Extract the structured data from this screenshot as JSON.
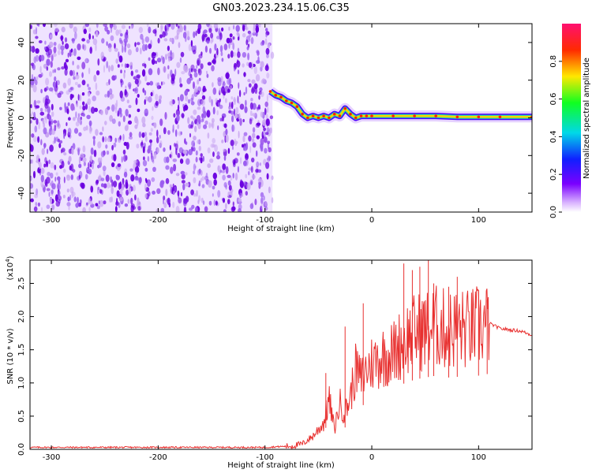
{
  "title": "GN03.2023.234.15.06.C35",
  "colors": {
    "noise_purple": "#6a00e0",
    "noise_light": "#c9a6f2",
    "snr_line": "#e8302f",
    "frame": "#000000"
  },
  "chart_data": [
    {
      "type": "heatmap",
      "xlabel": "Height of straight line (km)",
      "ylabel": "Frequency (Hz)",
      "xlim": [
        -320,
        150
      ],
      "ylim": [
        -50,
        50
      ],
      "xticks": [
        "-300",
        "-200",
        "-100",
        "0",
        "100"
      ],
      "yticks": [
        "-40",
        "-20",
        "0",
        "20",
        "40"
      ],
      "noise_region_x": [
        -320,
        -93
      ],
      "signal_track": {
        "x": [
          -95,
          -90,
          -85,
          -80,
          -75,
          -70,
          -65,
          -60,
          -55,
          -50,
          -45,
          -40,
          -35,
          -30,
          -25,
          -20,
          -15,
          -10,
          -5,
          0,
          20,
          40,
          60,
          80,
          100,
          120,
          150
        ],
        "y": [
          14,
          12,
          11,
          9,
          8,
          6,
          2,
          0,
          1,
          0,
          1,
          0,
          2,
          1,
          5,
          2,
          0,
          1,
          1,
          1,
          1,
          1,
          1,
          0.5,
          0.5,
          0.5,
          0.5
        ]
      },
      "colorbar": {
        "label": "Normalized spectral amplitude",
        "range": [
          0,
          1
        ],
        "ticks": [
          "0.0",
          "0.2",
          "0.4",
          "0.6",
          "0.8"
        ]
      }
    },
    {
      "type": "line",
      "xlabel": "Height of straight line (km)",
      "ylabel": "SNR (10 * v/v)",
      "exponent_label": "(x10",
      "exponent_power": "4",
      "exponent_close": ")",
      "xlim": [
        -320,
        150
      ],
      "ylim": [
        0,
        2.85
      ],
      "xticks": [
        "-300",
        "-200",
        "-100",
        "0",
        "100"
      ],
      "yticks": [
        "0.0",
        "0.5",
        "1.0",
        "1.5",
        "2.0",
        "2.5"
      ],
      "series": [
        {
          "x": [
            -320,
            -200,
            -100,
            -75,
            -65,
            -55,
            -45,
            -40,
            -35,
            -30,
            -25,
            -20,
            -15,
            -10,
            -5,
            0,
            10,
            20,
            30,
            40,
            50,
            60,
            70,
            80,
            90,
            100,
            110,
            120,
            130,
            140,
            150
          ],
          "y": [
            0.03,
            0.03,
            0.03,
            0.05,
            0.08,
            0.2,
            0.4,
            0.75,
            0.3,
            0.7,
            0.55,
            0.8,
            1.2,
            1.05,
            1.2,
            1.3,
            1.4,
            1.45,
            1.65,
            1.75,
            1.8,
            1.85,
            1.8,
            1.82,
            1.8,
            1.85,
            1.9,
            1.82,
            1.8,
            1.78,
            1.72
          ]
        }
      ],
      "spikes": [
        {
          "x": -43,
          "y": 1.15
        },
        {
          "x": -25,
          "y": 1.85
        },
        {
          "x": -8,
          "y": 2.2
        },
        {
          "x": 30,
          "y": 2.8
        },
        {
          "x": 38,
          "y": 2.7
        },
        {
          "x": 45,
          "y": 2.75
        },
        {
          "x": 53,
          "y": 2.85
        },
        {
          "x": 58,
          "y": 2.5
        },
        {
          "x": 72,
          "y": 2.45
        },
        {
          "x": 80,
          "y": 2.6
        },
        {
          "x": 100,
          "y": 2.4
        },
        {
          "x": 108,
          "y": 2.25
        }
      ]
    }
  ]
}
